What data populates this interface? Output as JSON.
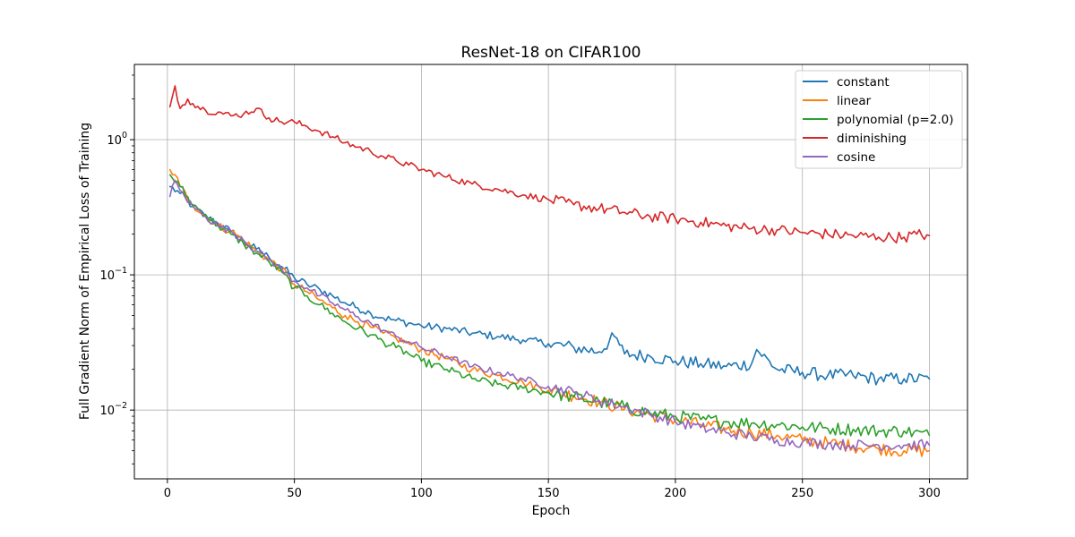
{
  "chart_data": {
    "type": "line",
    "title": "ResNet-18 on CIFAR100",
    "xlabel": "Epoch",
    "ylabel": "Full Gradient Norm of Empirical Loss of Training",
    "xlim": [
      -13,
      315
    ],
    "ylim": [
      0.0031,
      3.6
    ],
    "yscale": "log",
    "xticks": [
      0,
      50,
      100,
      150,
      200,
      250,
      300
    ],
    "yticks": [
      {
        "value": 0.01,
        "label": "10",
        "exp": "−2"
      },
      {
        "value": 0.1,
        "label": "10",
        "exp": "−1"
      },
      {
        "value": 1,
        "label": "10",
        "exp": "0"
      }
    ],
    "grid": true,
    "legend_position": "top-right",
    "series": [
      {
        "name": "constant",
        "color": "#1f77b4",
        "points": [
          [
            1,
            0.45
          ],
          [
            5,
            0.4
          ],
          [
            10,
            0.32
          ],
          [
            15,
            0.27
          ],
          [
            20,
            0.24
          ],
          [
            25,
            0.21
          ],
          [
            30,
            0.18
          ],
          [
            35,
            0.155
          ],
          [
            40,
            0.135
          ],
          [
            45,
            0.115
          ],
          [
            50,
            0.095
          ],
          [
            55,
            0.085
          ],
          [
            60,
            0.078
          ],
          [
            65,
            0.07
          ],
          [
            70,
            0.062
          ],
          [
            75,
            0.057
          ],
          [
            80,
            0.052
          ],
          [
            85,
            0.048
          ],
          [
            90,
            0.046
          ],
          [
            95,
            0.044
          ],
          [
            100,
            0.042
          ],
          [
            110,
            0.04
          ],
          [
            120,
            0.037
          ],
          [
            130,
            0.035
          ],
          [
            140,
            0.033
          ],
          [
            150,
            0.031
          ],
          [
            160,
            0.029
          ],
          [
            170,
            0.027
          ],
          [
            176,
            0.035
          ],
          [
            180,
            0.026
          ],
          [
            190,
            0.025
          ],
          [
            200,
            0.023
          ],
          [
            210,
            0.022
          ],
          [
            220,
            0.021
          ],
          [
            230,
            0.022
          ],
          [
            232,
            0.028
          ],
          [
            240,
            0.02
          ],
          [
            250,
            0.019
          ],
          [
            260,
            0.018
          ],
          [
            270,
            0.018
          ],
          [
            280,
            0.017
          ],
          [
            290,
            0.017
          ],
          [
            300,
            0.017
          ]
        ]
      },
      {
        "name": "linear",
        "color": "#ff7f0e",
        "points": [
          [
            1,
            0.6
          ],
          [
            3,
            0.55
          ],
          [
            5,
            0.45
          ],
          [
            10,
            0.33
          ],
          [
            15,
            0.27
          ],
          [
            20,
            0.23
          ],
          [
            25,
            0.21
          ],
          [
            30,
            0.18
          ],
          [
            35,
            0.15
          ],
          [
            40,
            0.13
          ],
          [
            45,
            0.11
          ],
          [
            50,
            0.085
          ],
          [
            55,
            0.075
          ],
          [
            60,
            0.065
          ],
          [
            65,
            0.057
          ],
          [
            70,
            0.05
          ],
          [
            75,
            0.045
          ],
          [
            80,
            0.041
          ],
          [
            85,
            0.037
          ],
          [
            90,
            0.034
          ],
          [
            95,
            0.031
          ],
          [
            100,
            0.028
          ],
          [
            110,
            0.024
          ],
          [
            120,
            0.02
          ],
          [
            130,
            0.018
          ],
          [
            140,
            0.016
          ],
          [
            150,
            0.014
          ],
          [
            160,
            0.0128
          ],
          [
            170,
            0.0115
          ],
          [
            180,
            0.0102
          ],
          [
            190,
            0.0092
          ],
          [
            200,
            0.0085
          ],
          [
            210,
            0.0078
          ],
          [
            220,
            0.0072
          ],
          [
            230,
            0.0068
          ],
          [
            240,
            0.0065
          ],
          [
            250,
            0.006
          ],
          [
            260,
            0.0057
          ],
          [
            270,
            0.0054
          ],
          [
            280,
            0.0052
          ],
          [
            290,
            0.005
          ],
          [
            300,
            0.005
          ]
        ]
      },
      {
        "name": "polynomial (p=2.0)",
        "color": "#2ca02c",
        "points": [
          [
            1,
            0.55
          ],
          [
            5,
            0.45
          ],
          [
            10,
            0.33
          ],
          [
            15,
            0.28
          ],
          [
            20,
            0.23
          ],
          [
            25,
            0.2
          ],
          [
            30,
            0.17
          ],
          [
            35,
            0.145
          ],
          [
            40,
            0.125
          ],
          [
            45,
            0.105
          ],
          [
            50,
            0.08
          ],
          [
            55,
            0.07
          ],
          [
            60,
            0.06
          ],
          [
            65,
            0.052
          ],
          [
            70,
            0.045
          ],
          [
            75,
            0.04
          ],
          [
            80,
            0.036
          ],
          [
            85,
            0.032
          ],
          [
            90,
            0.029
          ],
          [
            95,
            0.026
          ],
          [
            100,
            0.023
          ],
          [
            110,
            0.02
          ],
          [
            120,
            0.017
          ],
          [
            130,
            0.0155
          ],
          [
            140,
            0.0145
          ],
          [
            150,
            0.0135
          ],
          [
            160,
            0.0125
          ],
          [
            170,
            0.0115
          ],
          [
            180,
            0.0105
          ],
          [
            190,
            0.0095
          ],
          [
            200,
            0.009
          ],
          [
            210,
            0.0085
          ],
          [
            220,
            0.0082
          ],
          [
            230,
            0.008
          ],
          [
            240,
            0.0078
          ],
          [
            250,
            0.0075
          ],
          [
            260,
            0.0073
          ],
          [
            270,
            0.0072
          ],
          [
            280,
            0.007
          ],
          [
            290,
            0.007
          ],
          [
            300,
            0.0065
          ]
        ]
      },
      {
        "name": "diminishing",
        "color": "#d62728",
        "points": [
          [
            1,
            1.75
          ],
          [
            3,
            2.5
          ],
          [
            5,
            1.7
          ],
          [
            8,
            2.0
          ],
          [
            10,
            1.85
          ],
          [
            15,
            1.65
          ],
          [
            20,
            1.6
          ],
          [
            25,
            1.5
          ],
          [
            30,
            1.55
          ],
          [
            35,
            1.7
          ],
          [
            40,
            1.45
          ],
          [
            45,
            1.35
          ],
          [
            50,
            1.35
          ],
          [
            55,
            1.25
          ],
          [
            60,
            1.15
          ],
          [
            65,
            1.05
          ],
          [
            70,
            0.95
          ],
          [
            75,
            0.88
          ],
          [
            80,
            0.82
          ],
          [
            85,
            0.75
          ],
          [
            90,
            0.7
          ],
          [
            95,
            0.65
          ],
          [
            100,
            0.6
          ],
          [
            110,
            0.53
          ],
          [
            120,
            0.47
          ],
          [
            130,
            0.43
          ],
          [
            140,
            0.39
          ],
          [
            150,
            0.36
          ],
          [
            160,
            0.33
          ],
          [
            170,
            0.31
          ],
          [
            180,
            0.29
          ],
          [
            190,
            0.27
          ],
          [
            200,
            0.26
          ],
          [
            210,
            0.245
          ],
          [
            220,
            0.23
          ],
          [
            230,
            0.22
          ],
          [
            240,
            0.215
          ],
          [
            250,
            0.205
          ],
          [
            260,
            0.2
          ],
          [
            270,
            0.195
          ],
          [
            280,
            0.19
          ],
          [
            290,
            0.19
          ],
          [
            295,
            0.2
          ],
          [
            300,
            0.195
          ]
        ]
      },
      {
        "name": "cosine",
        "color": "#9467bd",
        "points": [
          [
            1,
            0.38
          ],
          [
            3,
            0.5
          ],
          [
            5,
            0.42
          ],
          [
            10,
            0.32
          ],
          [
            15,
            0.27
          ],
          [
            20,
            0.23
          ],
          [
            25,
            0.21
          ],
          [
            30,
            0.18
          ],
          [
            35,
            0.15
          ],
          [
            40,
            0.13
          ],
          [
            45,
            0.11
          ],
          [
            50,
            0.09
          ],
          [
            55,
            0.08
          ],
          [
            60,
            0.07
          ],
          [
            65,
            0.062
          ],
          [
            70,
            0.055
          ],
          [
            75,
            0.049
          ],
          [
            80,
            0.044
          ],
          [
            85,
            0.039
          ],
          [
            90,
            0.035
          ],
          [
            95,
            0.032
          ],
          [
            100,
            0.029
          ],
          [
            110,
            0.025
          ],
          [
            120,
            0.021
          ],
          [
            130,
            0.019
          ],
          [
            140,
            0.017
          ],
          [
            150,
            0.015
          ],
          [
            160,
            0.0135
          ],
          [
            170,
            0.0118
          ],
          [
            180,
            0.0105
          ],
          [
            190,
            0.0093
          ],
          [
            200,
            0.0082
          ],
          [
            210,
            0.0074
          ],
          [
            220,
            0.0068
          ],
          [
            230,
            0.0064
          ],
          [
            240,
            0.006
          ],
          [
            250,
            0.0058
          ],
          [
            260,
            0.0056
          ],
          [
            270,
            0.0055
          ],
          [
            280,
            0.0055
          ],
          [
            290,
            0.0055
          ],
          [
            300,
            0.0055
          ]
        ]
      }
    ]
  }
}
